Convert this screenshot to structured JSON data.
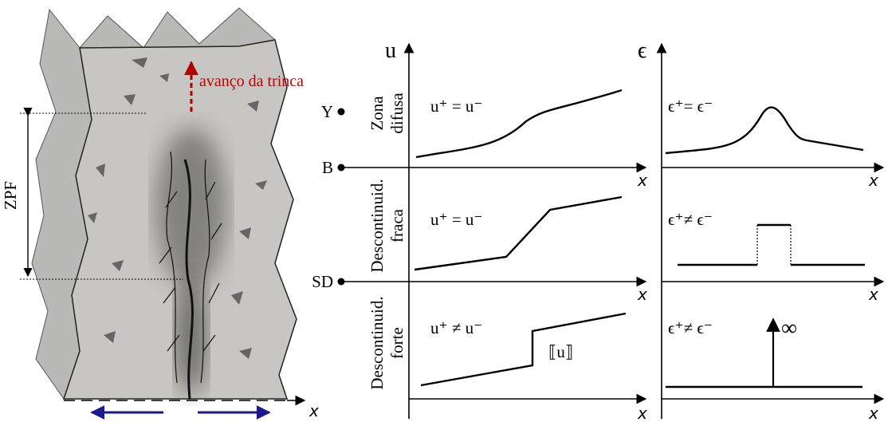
{
  "specimen": {
    "crack_label": "avanço da trinca",
    "zone_label": "ZPF"
  },
  "axis_x": "x",
  "points": [
    "Y",
    "B",
    "SD"
  ],
  "columns": {
    "u": "u",
    "eps": "ϵ"
  },
  "rows": [
    {
      "label": [
        "Zona",
        "difusa"
      ],
      "u_eq": "u⁺ = u⁻",
      "eps_eq": "ϵ⁺= ϵ⁻"
    },
    {
      "label": [
        "Descontinuid.",
        "fraca"
      ],
      "u_eq": "u⁺ = u⁻",
      "eps_eq": "ϵ⁺≠ ϵ⁻"
    },
    {
      "label": [
        "Descontinuid.",
        "forte"
      ],
      "u_eq": "u⁺ ≠ u⁻",
      "eps_eq": "ϵ⁺≠ ϵ⁻",
      "jump": "⟦u⟧",
      "infinity": "∞"
    }
  ]
}
